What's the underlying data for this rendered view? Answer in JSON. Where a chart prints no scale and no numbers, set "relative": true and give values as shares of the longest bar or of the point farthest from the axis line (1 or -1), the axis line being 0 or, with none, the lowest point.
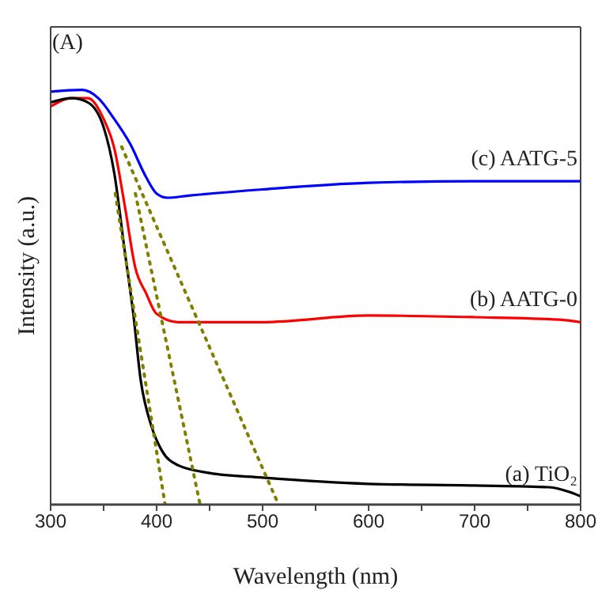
{
  "chart_data": {
    "type": "line",
    "relative": true,
    "xlabel": "Wavelength (nm)",
    "ylabel": "Intensity (a.u.)",
    "annotations": [
      "(A)"
    ],
    "xlim": [
      300,
      800
    ],
    "xticks": [
      300,
      {
        "value": 350,
        "label": null
      },
      400,
      {
        "value": 450,
        "label": null
      },
      500,
      {
        "value": 550,
        "label": null
      },
      600,
      {
        "value": 650,
        "label": null
      },
      700,
      {
        "value": 750,
        "label": null
      },
      800
    ],
    "series": [
      {
        "name": "(c) AATG-5",
        "color": "#0000ff",
        "x": [
          300,
          330,
          345,
          360,
          375,
          390,
          400,
          410,
          430,
          500,
          600,
          700,
          800
        ],
        "values": [
          0.996,
          1,
          0.98,
          0.93,
          0.87,
          0.79,
          0.75,
          0.74,
          0.745,
          0.76,
          0.776,
          0.78,
          0.78
        ]
      },
      {
        "name": "(b) AATG-0",
        "color": "#ff0000",
        "x": [
          300,
          320,
          335,
          350,
          360,
          370,
          380,
          390,
          400,
          420,
          500,
          600,
          700,
          780,
          800
        ],
        "values": [
          0.96,
          0.98,
          0.98,
          0.93,
          0.86,
          0.72,
          0.57,
          0.51,
          0.46,
          0.44,
          0.44,
          0.456,
          0.452,
          0.446,
          0.44
        ]
      },
      {
        "name": "(a) TiO₂",
        "color": "#000000",
        "x": [
          300,
          320,
          335,
          350,
          360,
          370,
          378,
          385,
          395,
          405,
          420,
          450,
          500,
          600,
          700,
          770,
          790,
          800
        ],
        "values": [
          0.97,
          0.98,
          0.97,
          0.91,
          0.8,
          0.61,
          0.46,
          0.3,
          0.19,
          0.13,
          0.095,
          0.076,
          0.065,
          0.05,
          0.046,
          0.042,
          0.03,
          0.02
        ]
      },
      {
        "type": "line",
        "color": "#808000",
        "line_style": "dotted",
        "x": [
          367,
          515
        ],
        "values": [
          0.863,
          0
        ]
      },
      {
        "type": "line",
        "color": "#808000",
        "line_style": "dotted",
        "x": [
          380,
          441
        ],
        "values": [
          0.75,
          0
        ]
      },
      {
        "type": "line",
        "color": "#808000",
        "line_style": "dotted",
        "x": [
          361,
          408
        ],
        "values": [
          0.75,
          0
        ]
      }
    ]
  }
}
